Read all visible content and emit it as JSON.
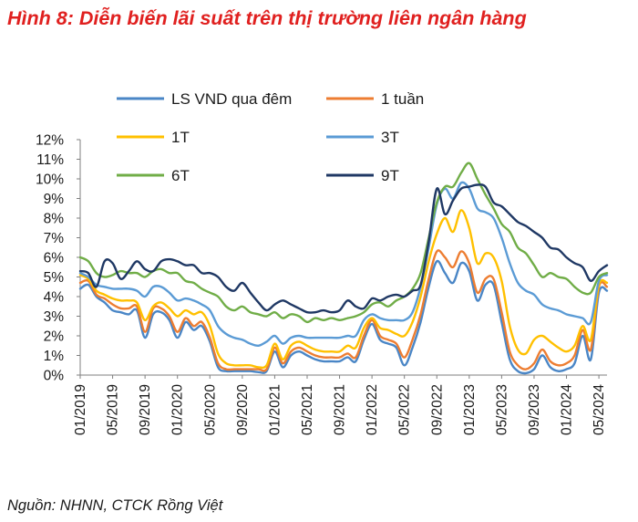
{
  "title": "Hình 8: Diễn biến lãi suất trên thị trường liên ngân hàng",
  "source": "Nguồn: NHNN, CTCK Rồng Việt",
  "chart_data": {
    "type": "line",
    "title": "Hình 8: Diễn biến lãi suất trên thị trường liên ngân hàng",
    "xlabel": "",
    "ylabel": "",
    "ylim": [
      0,
      12
    ],
    "y_ticks": [
      "0%",
      "1%",
      "2%",
      "3%",
      "4%",
      "5%",
      "6%",
      "7%",
      "8%",
      "9%",
      "10%",
      "11%",
      "12%"
    ],
    "x_ticks": [
      "01/2019",
      "05/2019",
      "09/2019",
      "01/2020",
      "05/2020",
      "09/2020",
      "01/2021",
      "05/2021",
      "09/2021",
      "01/2022",
      "05/2022",
      "09/2022",
      "01/2023",
      "05/2023",
      "09/2023",
      "01/2024",
      "05/2024"
    ],
    "legend_position": "top",
    "series": [
      {
        "name": "LS VND qua đêm",
        "color": "#4a86c6",
        "x": [
          "2019-01",
          "2019-02",
          "2019-03",
          "2019-04",
          "2019-05",
          "2019-06",
          "2019-07",
          "2019-08",
          "2019-09",
          "2019-10",
          "2019-11",
          "2019-12",
          "2020-01",
          "2020-02",
          "2020-03",
          "2020-04",
          "2020-05",
          "2020-06",
          "2020-07",
          "2020-08",
          "2020-09",
          "2020-10",
          "2020-11",
          "2020-12",
          "2021-01",
          "2021-02",
          "2021-03",
          "2021-04",
          "2021-05",
          "2021-06",
          "2021-07",
          "2021-08",
          "2021-09",
          "2021-10",
          "2021-11",
          "2021-12",
          "2022-01",
          "2022-02",
          "2022-03",
          "2022-04",
          "2022-05",
          "2022-06",
          "2022-07",
          "2022-08",
          "2022-09",
          "2022-10",
          "2022-11",
          "2022-12",
          "2023-01",
          "2023-02",
          "2023-03",
          "2023-04",
          "2023-05",
          "2023-06",
          "2023-07",
          "2023-08",
          "2023-09",
          "2023-10",
          "2023-11",
          "2023-12",
          "2024-01",
          "2024-02",
          "2024-03",
          "2024-04",
          "2024-05",
          "2024-06"
        ],
        "values": [
          4.4,
          4.6,
          4.0,
          3.7,
          3.3,
          3.2,
          3.1,
          3.3,
          1.9,
          3.1,
          3.2,
          2.8,
          1.9,
          2.7,
          2.3,
          2.5,
          1.7,
          0.4,
          0.2,
          0.2,
          0.2,
          0.2,
          0.15,
          0.2,
          1.2,
          0.4,
          1.0,
          1.2,
          1.0,
          0.8,
          0.7,
          0.7,
          0.7,
          0.9,
          0.7,
          1.8,
          2.6,
          1.8,
          1.6,
          1.4,
          0.5,
          1.4,
          2.7,
          4.5,
          5.8,
          5.2,
          4.7,
          5.7,
          5.3,
          3.8,
          4.6,
          4.6,
          2.7,
          0.8,
          0.2,
          0.1,
          0.3,
          1.0,
          0.4,
          0.2,
          0.3,
          0.6,
          2.0,
          0.8,
          4.2,
          4.3
        ]
      },
      {
        "name": "1 tuần",
        "color": "#ed7d31",
        "x": [
          "2019-01",
          "2019-02",
          "2019-03",
          "2019-04",
          "2019-05",
          "2019-06",
          "2019-07",
          "2019-08",
          "2019-09",
          "2019-10",
          "2019-11",
          "2019-12",
          "2020-01",
          "2020-02",
          "2020-03",
          "2020-04",
          "2020-05",
          "2020-06",
          "2020-07",
          "2020-08",
          "2020-09",
          "2020-10",
          "2020-11",
          "2020-12",
          "2021-01",
          "2021-02",
          "2021-03",
          "2021-04",
          "2021-05",
          "2021-06",
          "2021-07",
          "2021-08",
          "2021-09",
          "2021-10",
          "2021-11",
          "2021-12",
          "2022-01",
          "2022-02",
          "2022-03",
          "2022-04",
          "2022-05",
          "2022-06",
          "2022-07",
          "2022-08",
          "2022-09",
          "2022-10",
          "2022-11",
          "2022-12",
          "2023-01",
          "2023-02",
          "2023-03",
          "2023-04",
          "2023-05",
          "2023-06",
          "2023-07",
          "2023-08",
          "2023-09",
          "2023-10",
          "2023-11",
          "2023-12",
          "2024-01",
          "2024-02",
          "2024-03",
          "2024-04",
          "2024-05",
          "2024-06"
        ],
        "values": [
          4.7,
          4.8,
          4.1,
          3.9,
          3.6,
          3.4,
          3.4,
          3.5,
          2.2,
          3.4,
          3.4,
          3.0,
          2.2,
          2.9,
          2.5,
          2.7,
          1.9,
          0.6,
          0.3,
          0.3,
          0.3,
          0.3,
          0.3,
          0.3,
          1.4,
          0.6,
          1.2,
          1.4,
          1.2,
          1.0,
          0.9,
          0.9,
          0.9,
          1.1,
          0.9,
          2.0,
          2.8,
          2.0,
          1.8,
          1.6,
          0.9,
          1.8,
          3.1,
          4.9,
          6.3,
          6.0,
          5.5,
          6.3,
          5.7,
          4.2,
          4.9,
          4.9,
          3.2,
          1.2,
          0.5,
          0.3,
          0.6,
          1.3,
          0.7,
          0.5,
          0.6,
          1.0,
          2.3,
          1.3,
          4.5,
          4.5
        ]
      },
      {
        "name": "1T",
        "color": "#ffc000",
        "x": [
          "2019-01",
          "2019-02",
          "2019-03",
          "2019-04",
          "2019-05",
          "2019-06",
          "2019-07",
          "2019-08",
          "2019-09",
          "2019-10",
          "2019-11",
          "2019-12",
          "2020-01",
          "2020-02",
          "2020-03",
          "2020-04",
          "2020-05",
          "2020-06",
          "2020-07",
          "2020-08",
          "2020-09",
          "2020-10",
          "2020-11",
          "2020-12",
          "2021-01",
          "2021-02",
          "2021-03",
          "2021-04",
          "2021-05",
          "2021-06",
          "2021-07",
          "2021-08",
          "2021-09",
          "2021-10",
          "2021-11",
          "2021-12",
          "2022-01",
          "2022-02",
          "2022-03",
          "2022-04",
          "2022-05",
          "2022-06",
          "2022-07",
          "2022-08",
          "2022-09",
          "2022-10",
          "2022-11",
          "2022-12",
          "2023-01",
          "2023-02",
          "2023-03",
          "2023-04",
          "2023-05",
          "2023-06",
          "2023-07",
          "2023-08",
          "2023-09",
          "2023-10",
          "2023-11",
          "2023-12",
          "2024-01",
          "2024-02",
          "2024-03",
          "2024-04",
          "2024-05",
          "2024-06"
        ],
        "values": [
          5.1,
          4.9,
          4.3,
          4.1,
          3.9,
          3.8,
          3.8,
          3.7,
          2.8,
          3.5,
          3.7,
          3.4,
          3.0,
          3.3,
          3.1,
          3.2,
          2.5,
          1.1,
          0.6,
          0.5,
          0.5,
          0.5,
          0.4,
          0.5,
          1.6,
          0.8,
          1.5,
          1.7,
          1.5,
          1.3,
          1.2,
          1.2,
          1.2,
          1.5,
          1.4,
          2.4,
          2.9,
          2.4,
          2.3,
          2.1,
          2.0,
          2.7,
          4.0,
          5.8,
          7.2,
          8.0,
          7.3,
          8.4,
          7.5,
          5.7,
          6.2,
          6.0,
          4.8,
          2.5,
          1.3,
          1.1,
          1.8,
          2.0,
          1.7,
          1.4,
          1.2,
          1.5,
          2.5,
          1.8,
          4.6,
          4.7
        ]
      },
      {
        "name": "3T",
        "color": "#5b9bd5",
        "x": [
          "2019-01",
          "2019-02",
          "2019-03",
          "2019-04",
          "2019-05",
          "2019-06",
          "2019-07",
          "2019-08",
          "2019-09",
          "2019-10",
          "2019-11",
          "2019-12",
          "2020-01",
          "2020-02",
          "2020-03",
          "2020-04",
          "2020-05",
          "2020-06",
          "2020-07",
          "2020-08",
          "2020-09",
          "2020-10",
          "2020-11",
          "2020-12",
          "2021-01",
          "2021-02",
          "2021-03",
          "2021-04",
          "2021-05",
          "2021-06",
          "2021-07",
          "2021-08",
          "2021-09",
          "2021-10",
          "2021-11",
          "2021-12",
          "2022-01",
          "2022-02",
          "2022-03",
          "2022-04",
          "2022-05",
          "2022-06",
          "2022-07",
          "2022-08",
          "2022-09",
          "2022-10",
          "2022-11",
          "2022-12",
          "2023-01",
          "2023-02",
          "2023-03",
          "2023-04",
          "2023-05",
          "2023-06",
          "2023-07",
          "2023-08",
          "2023-09",
          "2023-10",
          "2023-11",
          "2023-12",
          "2024-01",
          "2024-02",
          "2024-03",
          "2024-04",
          "2024-05",
          "2024-06"
        ],
        "values": [
          5.2,
          5.0,
          4.6,
          4.5,
          4.4,
          4.4,
          4.4,
          4.3,
          4.0,
          4.5,
          4.5,
          4.2,
          3.8,
          3.9,
          3.8,
          3.6,
          3.3,
          2.5,
          2.1,
          1.9,
          1.8,
          1.6,
          1.5,
          1.7,
          2.0,
          1.6,
          1.9,
          2.0,
          1.9,
          1.9,
          1.9,
          1.9,
          1.9,
          2.0,
          2.0,
          2.8,
          3.1,
          2.9,
          2.8,
          2.8,
          2.8,
          3.2,
          4.5,
          6.5,
          8.7,
          9.5,
          9.0,
          9.8,
          9.5,
          8.5,
          8.3,
          8.0,
          7.0,
          5.7,
          4.7,
          4.3,
          4.1,
          3.6,
          3.4,
          3.3,
          3.1,
          3.0,
          2.9,
          2.7,
          4.8,
          5.1
        ]
      },
      {
        "name": "6T",
        "color": "#70ad47",
        "x": [
          "2019-01",
          "2019-02",
          "2019-03",
          "2019-04",
          "2019-05",
          "2019-06",
          "2019-07",
          "2019-08",
          "2019-09",
          "2019-10",
          "2019-11",
          "2019-12",
          "2020-01",
          "2020-02",
          "2020-03",
          "2020-04",
          "2020-05",
          "2020-06",
          "2020-07",
          "2020-08",
          "2020-09",
          "2020-10",
          "2020-11",
          "2020-12",
          "2021-01",
          "2021-02",
          "2021-03",
          "2021-04",
          "2021-05",
          "2021-06",
          "2021-07",
          "2021-08",
          "2021-09",
          "2021-10",
          "2021-11",
          "2021-12",
          "2022-01",
          "2022-02",
          "2022-03",
          "2022-04",
          "2022-05",
          "2022-06",
          "2022-07",
          "2022-08",
          "2022-09",
          "2022-10",
          "2022-11",
          "2022-12",
          "2023-01",
          "2023-02",
          "2023-03",
          "2023-04",
          "2023-05",
          "2023-06",
          "2023-07",
          "2023-08",
          "2023-09",
          "2023-10",
          "2023-11",
          "2023-12",
          "2024-01",
          "2024-02",
          "2024-03",
          "2024-04",
          "2024-05",
          "2024-06"
        ],
        "values": [
          6.0,
          5.8,
          5.2,
          5.0,
          5.1,
          5.3,
          5.2,
          5.2,
          5.0,
          5.3,
          5.4,
          5.2,
          5.2,
          4.8,
          4.7,
          4.4,
          4.2,
          4.0,
          3.5,
          3.3,
          3.5,
          3.2,
          3.1,
          3.0,
          3.2,
          2.9,
          3.1,
          3.0,
          2.7,
          2.9,
          2.8,
          2.9,
          2.8,
          2.9,
          3.0,
          3.2,
          3.6,
          3.7,
          3.5,
          3.8,
          4.0,
          4.4,
          5.2,
          7.0,
          8.8,
          9.6,
          9.6,
          10.3,
          10.8,
          10.0,
          9.2,
          8.5,
          7.7,
          7.3,
          6.5,
          6.2,
          5.6,
          5.0,
          5.2,
          5.0,
          4.9,
          4.5,
          4.2,
          4.2,
          5.0,
          5.2
        ]
      },
      {
        "name": "9T",
        "color": "#1f3864",
        "x": [
          "2019-01",
          "2019-02",
          "2019-03",
          "2019-04",
          "2019-05",
          "2019-06",
          "2019-07",
          "2019-08",
          "2019-09",
          "2019-10",
          "2019-11",
          "2019-12",
          "2020-01",
          "2020-02",
          "2020-03",
          "2020-04",
          "2020-05",
          "2020-06",
          "2020-07",
          "2020-08",
          "2020-09",
          "2020-10",
          "2020-11",
          "2020-12",
          "2021-01",
          "2021-02",
          "2021-03",
          "2021-04",
          "2021-05",
          "2021-06",
          "2021-07",
          "2021-08",
          "2021-09",
          "2021-10",
          "2021-11",
          "2021-12",
          "2022-01",
          "2022-02",
          "2022-03",
          "2022-04",
          "2022-05",
          "2022-06",
          "2022-07",
          "2022-08",
          "2022-09",
          "2022-10",
          "2022-11",
          "2022-12",
          "2023-01",
          "2023-02",
          "2023-03",
          "2023-04",
          "2023-05",
          "2023-06",
          "2023-07",
          "2023-08",
          "2023-09",
          "2023-10",
          "2023-11",
          "2023-12",
          "2024-01",
          "2024-02",
          "2024-03",
          "2024-04",
          "2024-05",
          "2024-06"
        ],
        "values": [
          5.3,
          5.2,
          4.5,
          5.8,
          5.7,
          4.9,
          5.3,
          5.8,
          5.4,
          5.3,
          5.8,
          5.9,
          5.8,
          5.6,
          5.6,
          5.2,
          5.2,
          5.0,
          4.5,
          4.3,
          4.7,
          4.2,
          3.7,
          3.3,
          3.6,
          3.8,
          3.6,
          3.4,
          3.2,
          3.2,
          3.3,
          3.2,
          3.3,
          3.8,
          3.5,
          3.4,
          3.9,
          3.8,
          4.0,
          4.1,
          4.0,
          4.3,
          4.6,
          6.8,
          9.5,
          8.2,
          8.9,
          9.5,
          9.6,
          9.7,
          9.6,
          8.8,
          8.6,
          8.2,
          7.8,
          7.6,
          7.3,
          7.0,
          6.5,
          6.4,
          6.0,
          5.7,
          5.5,
          4.8,
          5.3,
          5.6
        ]
      }
    ]
  }
}
